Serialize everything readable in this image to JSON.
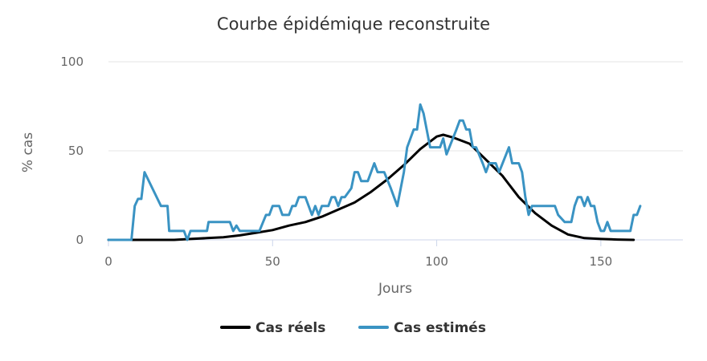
{
  "chart_data": {
    "type": "line",
    "title": "Courbe épidémique reconstruite",
    "xlabel": "Jours",
    "ylabel": "% cas",
    "xlim": [
      0,
      175
    ],
    "ylim": [
      0,
      100
    ],
    "x_ticks": [
      "0",
      "50",
      "100",
      "150"
    ],
    "y_ticks": [
      "0",
      "50",
      "100"
    ],
    "grid": "horizontal",
    "legend_position": "bottom",
    "series": [
      {
        "name": "Cas réels",
        "color": "#000000",
        "points": [
          [
            0,
            0
          ],
          [
            20,
            0
          ],
          [
            25,
            0.5
          ],
          [
            30,
            1
          ],
          [
            35,
            1.5
          ],
          [
            40,
            2.5
          ],
          [
            45,
            4
          ],
          [
            50,
            5.5
          ],
          [
            55,
            8
          ],
          [
            60,
            10
          ],
          [
            65,
            13
          ],
          [
            70,
            17
          ],
          [
            75,
            21
          ],
          [
            80,
            27
          ],
          [
            85,
            34
          ],
          [
            90,
            42
          ],
          [
            95,
            51
          ],
          [
            100,
            58
          ],
          [
            102,
            59
          ],
          [
            105,
            57.5
          ],
          [
            110,
            54
          ],
          [
            115,
            45
          ],
          [
            120,
            36
          ],
          [
            125,
            24
          ],
          [
            130,
            15
          ],
          [
            135,
            8
          ],
          [
            140,
            3
          ],
          [
            145,
            1
          ],
          [
            150,
            0.5
          ],
          [
            155,
            0.2
          ],
          [
            160,
            0
          ]
        ]
      },
      {
        "name": "Cas estimés",
        "color": "#3a93c3",
        "points": [
          [
            0,
            0
          ],
          [
            7,
            0
          ],
          [
            8,
            19
          ],
          [
            9,
            23
          ],
          [
            10,
            23
          ],
          [
            11,
            38
          ],
          [
            16,
            19
          ],
          [
            18,
            19
          ],
          [
            18.5,
            5
          ],
          [
            23,
            5
          ],
          [
            24,
            0
          ],
          [
            25,
            5
          ],
          [
            30,
            5
          ],
          [
            30.5,
            10
          ],
          [
            37,
            10
          ],
          [
            38,
            5
          ],
          [
            39,
            8
          ],
          [
            40,
            5
          ],
          [
            46,
            5
          ],
          [
            48,
            14
          ],
          [
            49,
            14
          ],
          [
            50,
            19
          ],
          [
            52,
            19
          ],
          [
            53,
            14
          ],
          [
            55,
            14
          ],
          [
            56,
            19
          ],
          [
            57,
            19
          ],
          [
            58,
            24
          ],
          [
            60,
            24
          ],
          [
            62,
            14
          ],
          [
            63,
            19
          ],
          [
            64,
            14
          ],
          [
            65,
            19
          ],
          [
            67,
            19
          ],
          [
            68,
            24
          ],
          [
            69,
            24
          ],
          [
            70,
            19
          ],
          [
            71,
            24
          ],
          [
            72,
            24
          ],
          [
            74,
            29
          ],
          [
            75,
            38
          ],
          [
            76,
            38
          ],
          [
            77,
            33
          ],
          [
            79,
            33
          ],
          [
            81,
            43
          ],
          [
            82,
            38
          ],
          [
            84,
            38
          ],
          [
            86,
            29
          ],
          [
            88,
            19
          ],
          [
            90,
            38
          ],
          [
            91,
            52
          ],
          [
            93,
            62
          ],
          [
            94,
            62
          ],
          [
            95,
            76
          ],
          [
            96,
            71
          ],
          [
            98,
            52
          ],
          [
            101,
            52
          ],
          [
            102,
            57
          ],
          [
            103,
            48
          ],
          [
            106,
            62
          ],
          [
            107,
            67
          ],
          [
            108,
            67
          ],
          [
            109,
            62
          ],
          [
            110,
            62
          ],
          [
            111,
            52
          ],
          [
            112,
            52
          ],
          [
            114,
            43
          ],
          [
            115,
            38
          ],
          [
            116,
            43
          ],
          [
            118,
            43
          ],
          [
            119,
            38
          ],
          [
            122,
            52
          ],
          [
            123,
            43
          ],
          [
            125,
            43
          ],
          [
            126,
            38
          ],
          [
            127,
            24
          ],
          [
            128,
            14
          ],
          [
            129,
            19
          ],
          [
            136,
            19
          ],
          [
            137,
            14
          ],
          [
            139,
            10
          ],
          [
            141,
            10
          ],
          [
            142,
            19
          ],
          [
            143,
            24
          ],
          [
            144,
            24
          ],
          [
            145,
            19
          ],
          [
            146,
            24
          ],
          [
            147,
            19
          ],
          [
            148,
            19
          ],
          [
            149,
            10
          ],
          [
            150,
            5
          ],
          [
            151,
            5
          ],
          [
            152,
            10
          ],
          [
            153,
            5
          ],
          [
            159,
            5
          ],
          [
            160,
            14
          ],
          [
            161,
            14
          ],
          [
            162,
            19
          ]
        ]
      }
    ]
  }
}
